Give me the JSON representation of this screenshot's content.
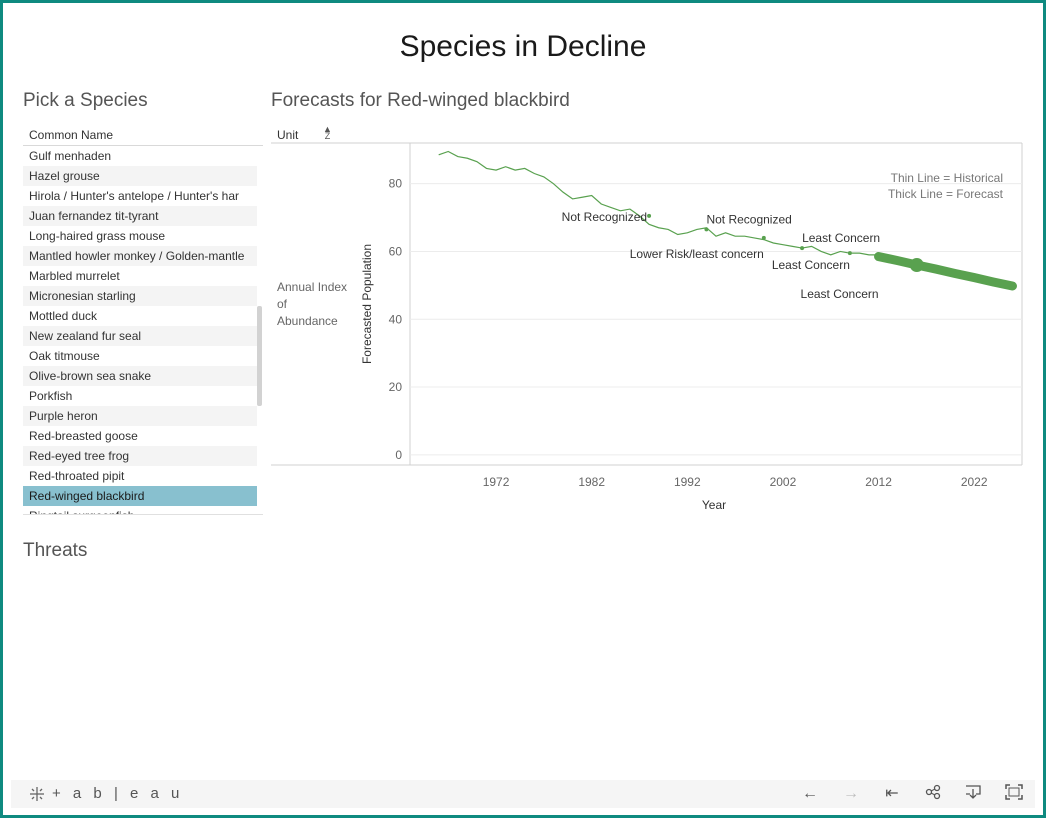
{
  "dashboard_title": "Species in Decline",
  "picker": {
    "title": "Pick a Species",
    "column_header": "Common Name",
    "items": [
      "Gulf menhaden",
      "Hazel grouse",
      "Hirola / Hunter's antelope / Hunter's har",
      "Juan fernandez tit-tyrant",
      "Long-haired grass mouse",
      "Mantled howler monkey / Golden-mantle",
      "Marbled murrelet",
      "Micronesian starling",
      "Mottled duck",
      "New zealand fur seal",
      "Oak titmouse",
      "Olive-brown sea snake",
      "Porkfish",
      "Purple heron",
      "Red-breasted goose",
      "Red-eyed tree frog",
      "Red-throated pipit",
      "Red-winged blackbird",
      "Ringtail surgeonfish"
    ],
    "selected": "Red-winged blackbird"
  },
  "forecast": {
    "title": "Forecasts for Red-winged blackbird",
    "unit_header": "Unit",
    "row_label": [
      "Annual Index",
      "of",
      "Abundance"
    ],
    "legend_lines": [
      "Thin Line = Historical",
      "Thick Line = Forecast"
    ],
    "status_labels": [
      {
        "text": "Not Recognized",
        "x": 1988,
        "y": 70.5
      },
      {
        "text": "Not Recognized",
        "x": 1994,
        "y": 66.5
      },
      {
        "text": "Lower Risk/least concern",
        "x": 2000,
        "y": 64
      },
      {
        "text": "Least Concern",
        "x": 2004,
        "y": 61
      },
      {
        "text": "Least Concern",
        "x": 2009,
        "y": 59.5
      },
      {
        "text": "Least Concern",
        "x": 2012,
        "y": 58
      }
    ]
  },
  "chart_data": {
    "type": "line",
    "xlabel": "Year",
    "ylabel": "Forecasted Population",
    "xticks": [
      1972,
      1982,
      1992,
      2002,
      2012,
      2022
    ],
    "yticks": [
      0,
      20,
      40,
      60,
      80
    ],
    "xlim": [
      1963,
      2027
    ],
    "ylim": [
      -3,
      92
    ],
    "grid": true,
    "series": [
      {
        "name": "Historical",
        "color": "#59a14f",
        "x": [
          1966,
          1967,
          1968,
          1969,
          1970,
          1971,
          1972,
          1973,
          1974,
          1975,
          1976,
          1977,
          1978,
          1979,
          1980,
          1981,
          1982,
          1983,
          1984,
          1985,
          1986,
          1987,
          1988,
          1989,
          1990,
          1991,
          1992,
          1993,
          1994,
          1995,
          1996,
          1997,
          1998,
          1999,
          2000,
          2001,
          2002,
          2003,
          2004,
          2005,
          2006,
          2007,
          2008,
          2009,
          2010,
          2011,
          2012
        ],
        "values": [
          88.5,
          89.5,
          88,
          87.5,
          86.5,
          84.5,
          84,
          85,
          84,
          84.5,
          83,
          82,
          80,
          77.5,
          75.5,
          76,
          76.5,
          74,
          73,
          72,
          72.5,
          70.5,
          68,
          67,
          66.5,
          65,
          65.5,
          66.5,
          67,
          64.5,
          65.5,
          64.5,
          64.5,
          64,
          63.5,
          62.5,
          62,
          61.5,
          61,
          61.5,
          60,
          59,
          60,
          59.5,
          59.5,
          59,
          59
        ]
      },
      {
        "name": "Forecast",
        "color": "#59a14f",
        "x": [
          2012,
          2014,
          2016,
          2018,
          2020,
          2022,
          2024,
          2026
        ],
        "values": [
          58.5,
          57.3,
          56,
          54.8,
          53.5,
          52.3,
          51,
          49.8
        ]
      }
    ]
  },
  "threats": {
    "title": "Threats"
  },
  "footer": {
    "brand": "+ a b | e a u",
    "buttons": [
      "undo-icon",
      "redo-icon",
      "revert-icon",
      "share-icon",
      "download-icon",
      "fullscreen-icon"
    ]
  }
}
